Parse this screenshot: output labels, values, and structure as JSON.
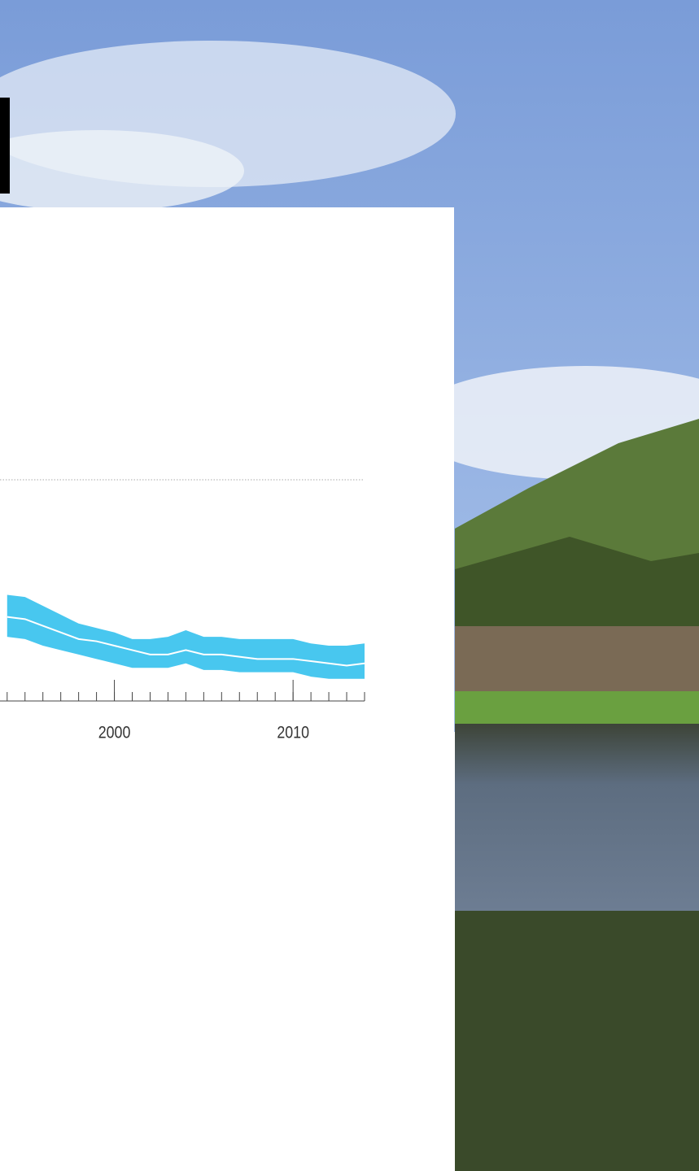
{
  "chart_data": {
    "type": "line",
    "x": [
      1994,
      1995,
      1996,
      1997,
      1998,
      1999,
      2000,
      2001,
      2002,
      2003,
      2004,
      2005,
      2006,
      2007,
      2008,
      2009,
      2010,
      2011,
      2012,
      2013,
      2014
    ],
    "values": [
      0.38,
      0.37,
      0.34,
      0.31,
      0.28,
      0.27,
      0.25,
      0.23,
      0.21,
      0.21,
      0.23,
      0.21,
      0.21,
      0.2,
      0.19,
      0.19,
      0.19,
      0.18,
      0.17,
      0.16,
      0.17
    ],
    "band_upper": [
      0.48,
      0.47,
      0.43,
      0.39,
      0.35,
      0.33,
      0.31,
      0.28,
      0.28,
      0.29,
      0.32,
      0.29,
      0.29,
      0.28,
      0.28,
      0.28,
      0.28,
      0.26,
      0.25,
      0.25,
      0.26
    ],
    "band_lower": [
      0.29,
      0.28,
      0.25,
      0.23,
      0.21,
      0.19,
      0.17,
      0.15,
      0.15,
      0.15,
      0.17,
      0.14,
      0.14,
      0.13,
      0.13,
      0.13,
      0.13,
      0.11,
      0.1,
      0.1,
      0.1
    ],
    "color": "#ffffff",
    "band_color": "#48c7ef",
    "xlim": [
      1993.6,
      2014
    ],
    "xticks": [
      2000,
      2010
    ],
    "ylim": [
      0,
      1.25
    ],
    "reference_line": 1
  }
}
